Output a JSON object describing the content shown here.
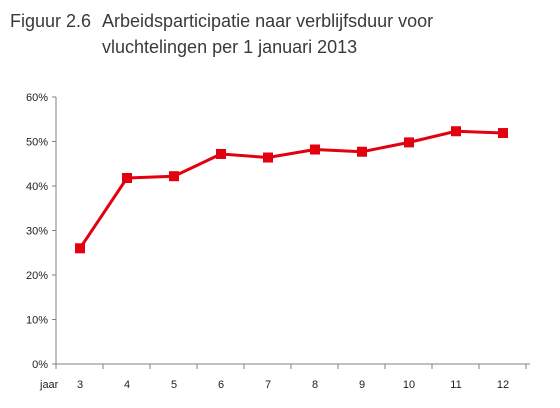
{
  "figure": {
    "label": "Figuur 2.6",
    "title": "Arbeidsparticipatie naar verblijfsduur voor vluchtelingen per 1 januari 2013"
  },
  "chart_data": {
    "type": "line",
    "title": "Arbeidsparticipatie naar verblijfsduur voor vluchtelingen per 1 januari 2013",
    "xlabel": "jaar",
    "ylabel": "",
    "x": [
      3,
      4,
      5,
      6,
      7,
      8,
      9,
      10,
      11,
      12
    ],
    "series": [
      {
        "values": [
          26,
          41.8,
          42.2,
          47.2,
          46.4,
          48.2,
          47.7,
          49.8,
          52.3,
          51.9
        ]
      }
    ],
    "ylim": [
      0,
      60
    ],
    "yticks": [
      0,
      10,
      20,
      30,
      40,
      50,
      60
    ],
    "ytick_labels": [
      "0%",
      "10%",
      "20%",
      "30%",
      "40%",
      "50%",
      "60%"
    ],
    "xtick_labels": [
      "3",
      "4",
      "5",
      "6",
      "7",
      "8",
      "9",
      "10",
      "11",
      "12"
    ],
    "grid": false,
    "legend": "none",
    "colors": {
      "series": "#e3000f",
      "axis": "#808080",
      "text": "#222222"
    }
  }
}
